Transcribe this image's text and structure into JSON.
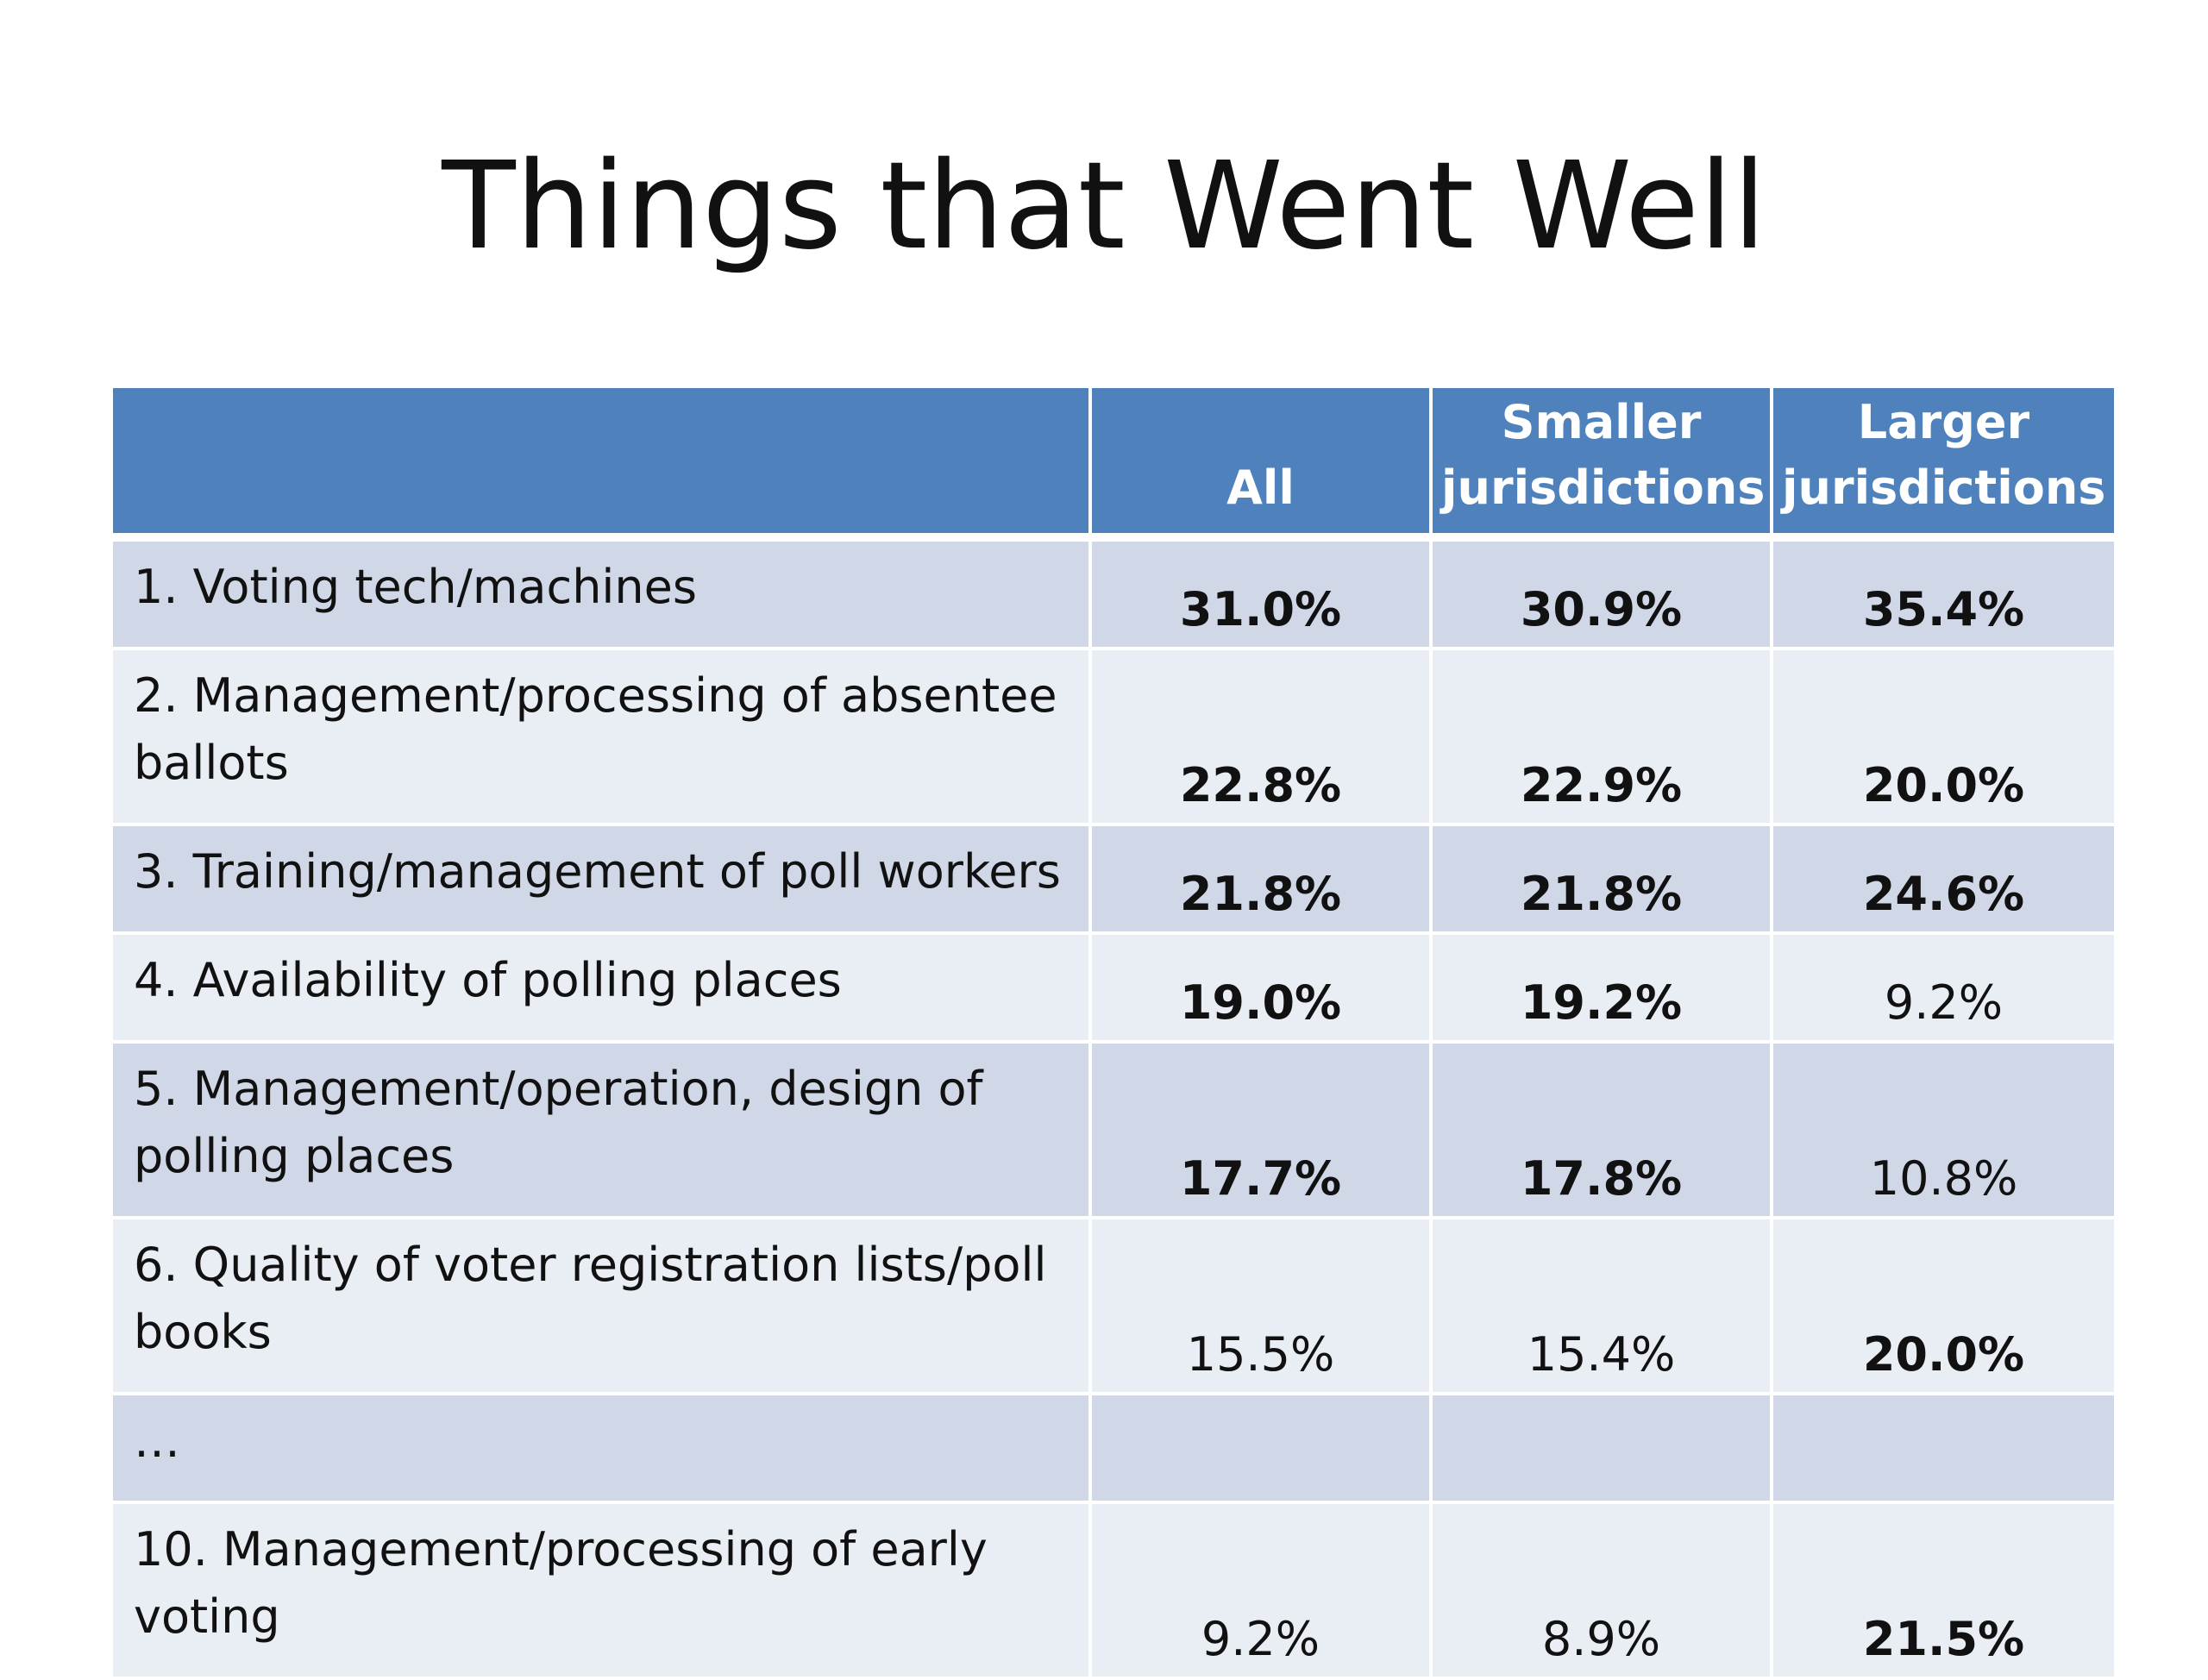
{
  "slide": {
    "title": "Things that Went Well"
  },
  "table": {
    "headers": {
      "label": "",
      "all": "All",
      "smaller": "Smaller jurisdictions",
      "larger": "Larger jurisdictions"
    },
    "rows": [
      {
        "label": "1. Voting tech/machines",
        "all": "31.0%",
        "smaller": "30.9%",
        "larger": "35.4%"
      },
      {
        "label": "2.  Management/processing of absentee ballots",
        "all": "22.8%",
        "smaller": "22.9%",
        "larger": "20.0%"
      },
      {
        "label": "3.  Training/management of poll workers",
        "all": "21.8%",
        "smaller": "21.8%",
        "larger": "24.6%"
      },
      {
        "label": "4. Availability of polling places",
        "all": "19.0%",
        "smaller": "19.2%",
        "larger": "9.2%"
      },
      {
        "label": "5. Management/operation, design of polling places",
        "all": "17.7%",
        "smaller": "17.8%",
        "larger": "10.8%"
      },
      {
        "label": "6. Quality of voter registration lists/poll books",
        "all": "15.5%",
        "smaller": "15.4%",
        "larger": "20.0%"
      },
      {
        "label": "…",
        "all": "",
        "smaller": "",
        "larger": ""
      },
      {
        "label": "10. Management/processing of early voting",
        "all": "9.2%",
        "smaller": "8.9%",
        "larger": "21.5%"
      }
    ]
  }
}
